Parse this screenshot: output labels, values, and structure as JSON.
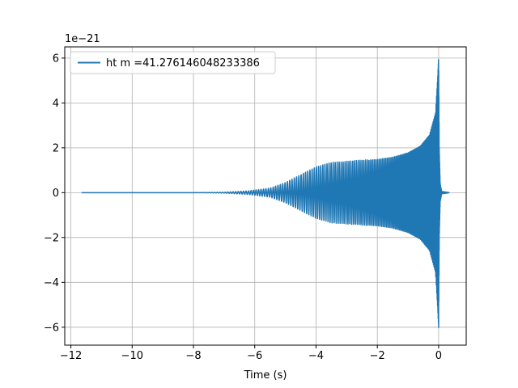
{
  "chart_data": {
    "type": "line",
    "title": "",
    "xlabel": "Time (s)",
    "ylabel": "",
    "offset_label": "1e−21",
    "xlim": [
      -12.2,
      0.9
    ],
    "ylim": [
      -6.8,
      6.5
    ],
    "xticks": [
      -12,
      -10,
      -8,
      -6,
      -4,
      -2,
      0
    ],
    "xtick_labels": [
      "−12",
      "−10",
      "−8",
      "−6",
      "−4",
      "−2",
      "0"
    ],
    "yticks": [
      -6,
      -4,
      -2,
      0,
      2,
      4,
      6
    ],
    "ytick_labels": [
      "−6",
      "−4",
      "−2",
      "0",
      "2",
      "4",
      "6"
    ],
    "grid": true,
    "legend_position": "top-left",
    "series": [
      {
        "name": "ht m =41.276146048233386",
        "color": "#1f77b4",
        "description": "chirp waveform (oscillating strain)",
        "x_start": -11.65,
        "x_merger": 0.0,
        "x_end": 0.35,
        "envelope": {
          "x": [
            -11.65,
            -8.0,
            -7.0,
            -6.2,
            -5.5,
            -5.0,
            -4.5,
            -4.0,
            -3.5,
            -3.0,
            -2.5,
            -2.0,
            -1.5,
            -1.0,
            -0.6,
            -0.3,
            -0.1,
            -0.03,
            0.0,
            0.02,
            0.05,
            0.1,
            0.35
          ],
          "y": [
            0.0,
            0.0,
            0.02,
            0.08,
            0.2,
            0.45,
            0.8,
            1.15,
            1.35,
            1.4,
            1.45,
            1.5,
            1.6,
            1.8,
            2.1,
            2.6,
            3.6,
            5.2,
            6.1,
            2.0,
            0.4,
            0.05,
            0.0
          ]
        }
      }
    ]
  }
}
